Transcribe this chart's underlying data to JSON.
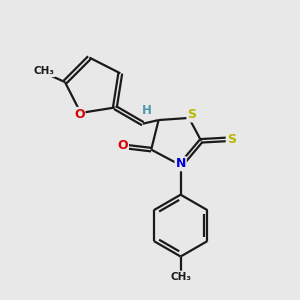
{
  "bg_color": "#e8e8e8",
  "bond_color": "#1a1a1a",
  "bond_width": 1.6,
  "atom_colors": {
    "S": "#b8b800",
    "N": "#0000dd",
    "O": "#dd0000",
    "H": "#4a9aaa",
    "C": "#1a1a1a"
  },
  "figsize": [
    3.0,
    3.0
  ],
  "dpi": 100,
  "xlim": [
    0,
    10
  ],
  "ylim": [
    0,
    10
  ]
}
